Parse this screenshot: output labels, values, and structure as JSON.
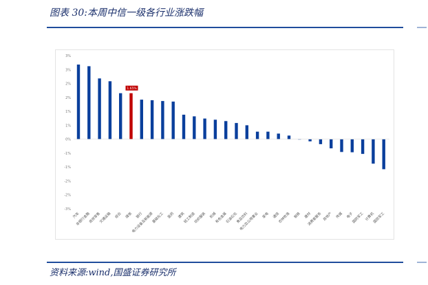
{
  "header": {
    "title": "图表 30:本周中信一级各行业涨跌幅"
  },
  "footer": {
    "source": "资料来源:wind,国盛证券研究所"
  },
  "chart_data": {
    "type": "bar",
    "title": "",
    "xlabel": "",
    "ylabel": "",
    "ylim": [
      -2,
      3
    ],
    "yticks": [
      "3%",
      "3%",
      "2%",
      "2%",
      "1%",
      "1%",
      "0%",
      "-1%",
      "-1%",
      "-2%",
      "-2%",
      "-3%"
    ],
    "grid": false,
    "legend": "none",
    "bar_color": "#0a3f9c",
    "highlight_color": "#c00000",
    "highlight_index": 5,
    "highlight_label": "1.65%",
    "categories": [
      "汽车",
      "非银行金融",
      "商贸零售",
      "交通运输",
      "综合",
      "煤炭",
      "银行",
      "电力设备及新能源",
      "基础化工",
      "医药",
      "建筑",
      "轻工制造",
      "纺织服装",
      "机械",
      "有色金属",
      "石油石化",
      "食品饮料",
      "电力及公用事业",
      "家电",
      "通信",
      "农林牧渔",
      "钢铁",
      "建材",
      "消费者服务",
      "房地产",
      "传媒",
      "电子",
      "国防军工",
      "计算机",
      "国防军工"
    ],
    "values": [
      2.68,
      2.62,
      2.18,
      2.08,
      1.65,
      1.65,
      1.42,
      1.4,
      1.37,
      1.35,
      0.88,
      0.82,
      0.74,
      0.7,
      0.65,
      0.58,
      0.5,
      0.27,
      0.27,
      0.2,
      0.13,
      0.0,
      -0.08,
      -0.18,
      -0.33,
      -0.46,
      -0.47,
      -0.53,
      -0.88,
      -1.08
    ]
  }
}
